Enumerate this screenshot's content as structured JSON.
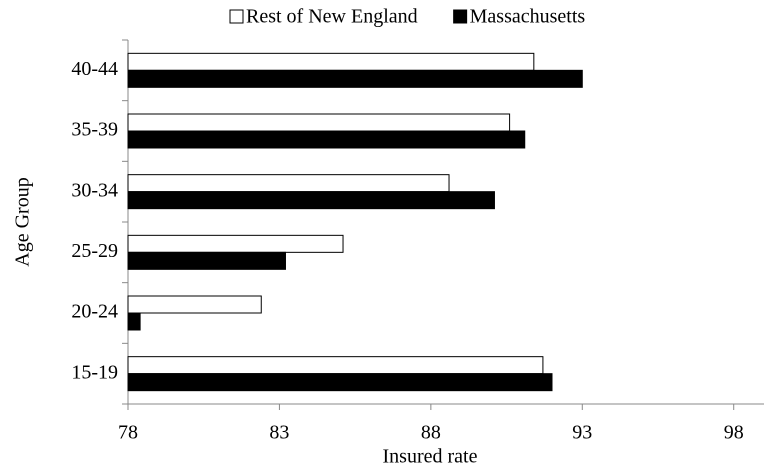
{
  "chart_data": {
    "type": "hbar",
    "categories": [
      "15-19",
      "20-24",
      "25-29",
      "30-34",
      "35-39",
      "40-44"
    ],
    "series": [
      {
        "name": "Rest of New England",
        "color": "#ffffff",
        "values": [
          91.7,
          82.4,
          85.1,
          88.6,
          90.6,
          91.4
        ]
      },
      {
        "name": "Massachusetts",
        "color": "#000000",
        "values": [
          92.0,
          78.4,
          83.2,
          90.1,
          91.1,
          93.0
        ]
      }
    ],
    "xlabel": "Insured rate",
    "ylabel": "Age Group",
    "xlim": [
      78,
      99
    ],
    "xticks": [
      78,
      83,
      88,
      93,
      98
    ],
    "grid": false,
    "legend": "top"
  }
}
